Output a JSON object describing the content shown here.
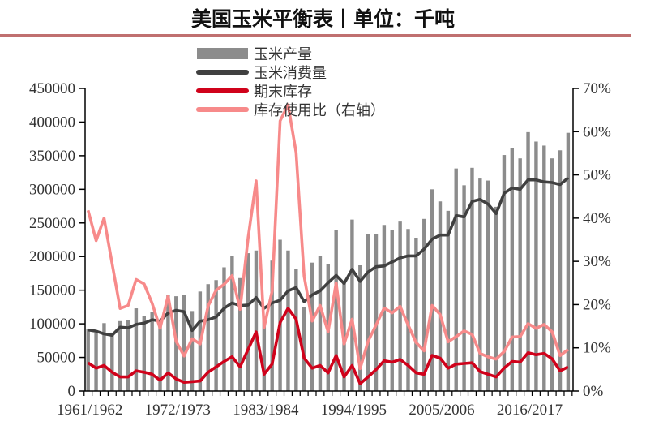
{
  "title": "美国玉米平衡表丨单位：千吨",
  "chart_data": {
    "type": "bar+line",
    "title": "美国玉米平衡表丨单位：千吨",
    "x_tick_labels": [
      "1961/1962",
      "1972/1973",
      "1983/1984",
      "1994/1995",
      "2005/2006",
      "2016/2017"
    ],
    "start_year": 1961,
    "count": 61,
    "ylim_left": [
      0,
      450000
    ],
    "yticks_left": [
      "0",
      "50000",
      "100000",
      "150000",
      "200000",
      "250000",
      "300000",
      "350000",
      "400000",
      "450000"
    ],
    "ylim_right": [
      0,
      70
    ],
    "yticks_right": [
      "0%",
      "10%",
      "20%",
      "30%",
      "40%",
      "50%",
      "60%",
      "70%"
    ],
    "legend_position": "top-center",
    "grid": false,
    "series": [
      {
        "name": "玉米产量",
        "type": "bar",
        "axis": "left",
        "color": "#8c8c8c",
        "values": [
          92000,
          86000,
          101000,
          87000,
          104000,
          105000,
          123000,
          112000,
          118000,
          105000,
          143000,
          141000,
          143000,
          119000,
          148000,
          159000,
          165000,
          184000,
          201000,
          168000,
          205000,
          209000,
          106000,
          194000,
          225000,
          209000,
          181000,
          125000,
          191000,
          201000,
          189000,
          240000,
          161000,
          255000,
          187000,
          234000,
          233000,
          247000,
          239000,
          252000,
          241000,
          228000,
          256000,
          300000,
          282000,
          268000,
          331000,
          306000,
          332000,
          316000,
          313000,
          274000,
          351000,
          361000,
          346000,
          385000,
          371000,
          365000,
          346000,
          358000,
          384000
        ]
      },
      {
        "name": "玉米消费量",
        "type": "line",
        "axis": "left",
        "color": "#404040",
        "values": [
          91000,
          89000,
          85000,
          83000,
          95000,
          94000,
          99000,
          101000,
          106000,
          104000,
          116000,
          120000,
          118000,
          90000,
          104000,
          106000,
          110000,
          123000,
          131000,
          127000,
          128000,
          139000,
          123000,
          131000,
          135000,
          149000,
          154000,
          133000,
          143000,
          149000,
          161000,
          172000,
          160000,
          181000,
          163000,
          177000,
          185000,
          186000,
          192000,
          198000,
          201000,
          201000,
          211000,
          226000,
          232000,
          232000,
          261000,
          259000,
          282000,
          285000,
          278000,
          264000,
          294000,
          302000,
          300000,
          314000,
          314000,
          311000,
          310000,
          307000,
          317000
        ]
      },
      {
        "name": "期末库存",
        "type": "line",
        "axis": "left",
        "color": "#d0021b",
        "values": [
          42000,
          34000,
          38000,
          28000,
          21000,
          21000,
          30000,
          28000,
          25000,
          16000,
          27000,
          18000,
          13000,
          14000,
          15000,
          28000,
          36000,
          44000,
          51000,
          36000,
          62000,
          88000,
          25000,
          40000,
          102000,
          123000,
          107000,
          49000,
          34000,
          38000,
          27000,
          53000,
          21000,
          38000,
          11000,
          21000,
          32000,
          45000,
          43000,
          47000,
          38000,
          27000,
          25000,
          53000,
          49000,
          34000,
          40000,
          41000,
          42000,
          29000,
          25000,
          21000,
          34000,
          44000,
          43000,
          57000,
          54000,
          56000,
          48000,
          30000,
          36000
        ]
      },
      {
        "name": "库存使用比（右轴）",
        "type": "line",
        "axis": "right",
        "color": "#f78a8a",
        "values": [
          41.8,
          34.8,
          40.0,
          29.5,
          19.1,
          19.8,
          25.8,
          24.8,
          20.3,
          14.5,
          22.0,
          11.5,
          8.1,
          12.1,
          10.9,
          19.7,
          23.3,
          24.7,
          26.7,
          18.9,
          35.4,
          48.6,
          14.7,
          23.1,
          62.5,
          66.2,
          55.2,
          26.6,
          16.2,
          19.8,
          13.7,
          25.0,
          10.9,
          16.6,
          5.2,
          11.5,
          15.3,
          19.2,
          18.1,
          19.6,
          15.3,
          11.2,
          9.3,
          19.8,
          17.7,
          11.4,
          12.6,
          13.9,
          13.1,
          8.7,
          7.9,
          7.4,
          9.1,
          12.5,
          12.6,
          15.6,
          14.5,
          15.4,
          13.7,
          8.2,
          9.6
        ]
      }
    ]
  }
}
